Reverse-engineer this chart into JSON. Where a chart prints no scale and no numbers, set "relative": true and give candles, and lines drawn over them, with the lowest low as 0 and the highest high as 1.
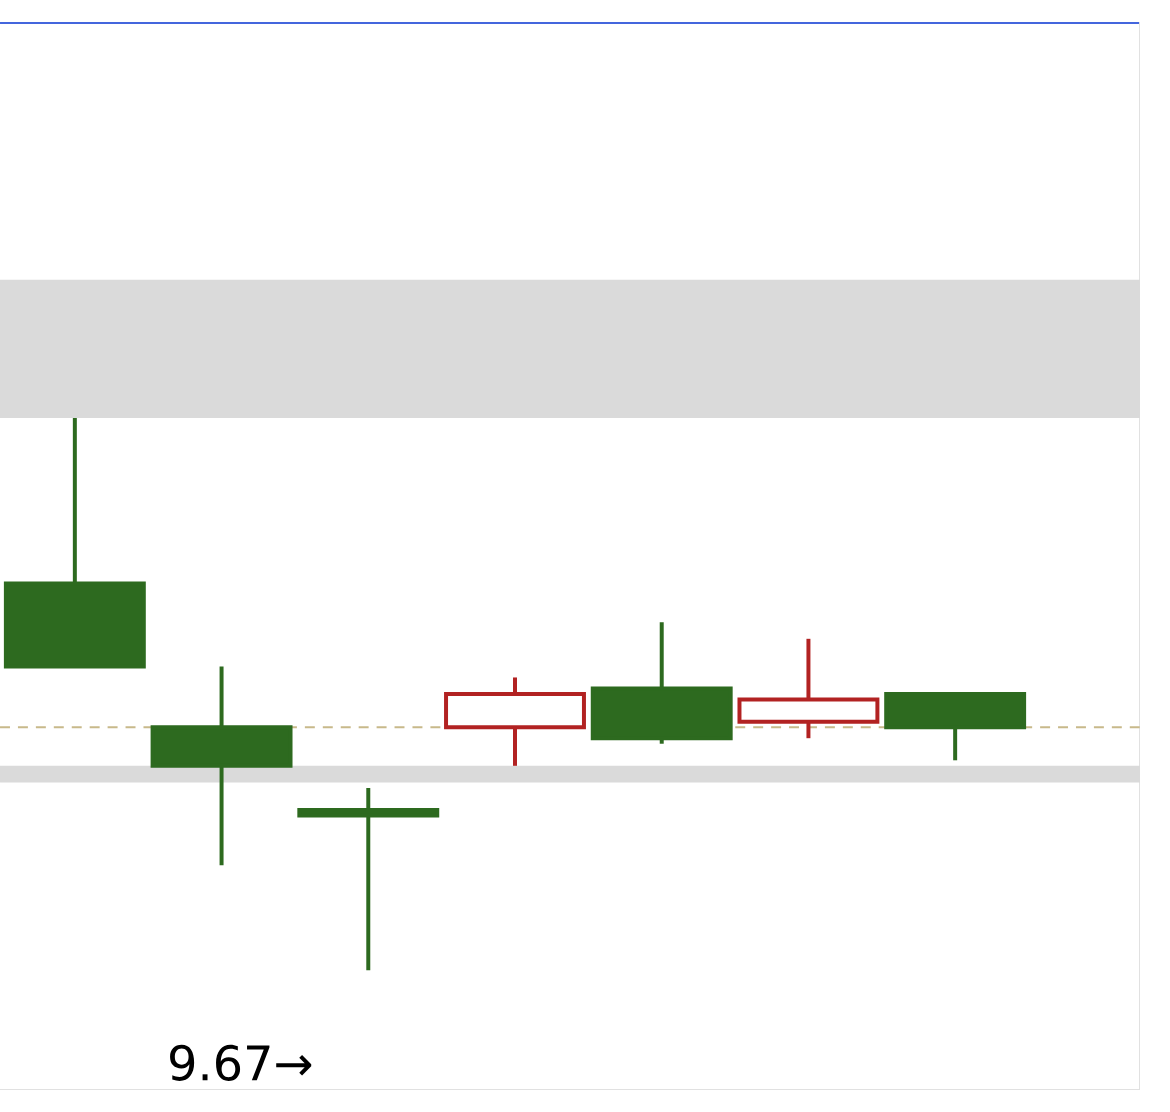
{
  "chart_data": {
    "type": "candlestick",
    "relative": true,
    "categories": [
      null,
      null,
      null,
      null,
      null,
      null,
      null
    ],
    "ohlc": [
      [
        0.55,
        1.0,
        0.55,
        0.7
      ],
      [
        0.37,
        0.55,
        0.19,
        0.44
      ],
      [
        0.28,
        0.33,
        0.0,
        0.29
      ],
      [
        0.5,
        0.53,
        0.37,
        0.44
      ],
      [
        0.42,
        0.63,
        0.41,
        0.51
      ],
      [
        0.49,
        0.6,
        0.42,
        0.45
      ],
      [
        0.44,
        0.5,
        0.38,
        0.5
      ]
    ],
    "colors": [
      "#2d6a1f",
      "#2d6a1f",
      "#2d6a1f",
      "#b22222",
      "#2d6a1f",
      "#b22222",
      "#2d6a1f"
    ],
    "ref_lines": [
      {
        "axis": "y",
        "value": 0.44,
        "color": "#c8b98a",
        "line_style": "dashed"
      }
    ],
    "bands": [
      {
        "axis": "y",
        "from": 1.0,
        "to": 1.25,
        "color": "#dadada"
      },
      {
        "axis": "y",
        "from": 0.34,
        "to": 0.37,
        "color": "#dadada"
      }
    ],
    "annotations": [
      "9.67→"
    ]
  }
}
